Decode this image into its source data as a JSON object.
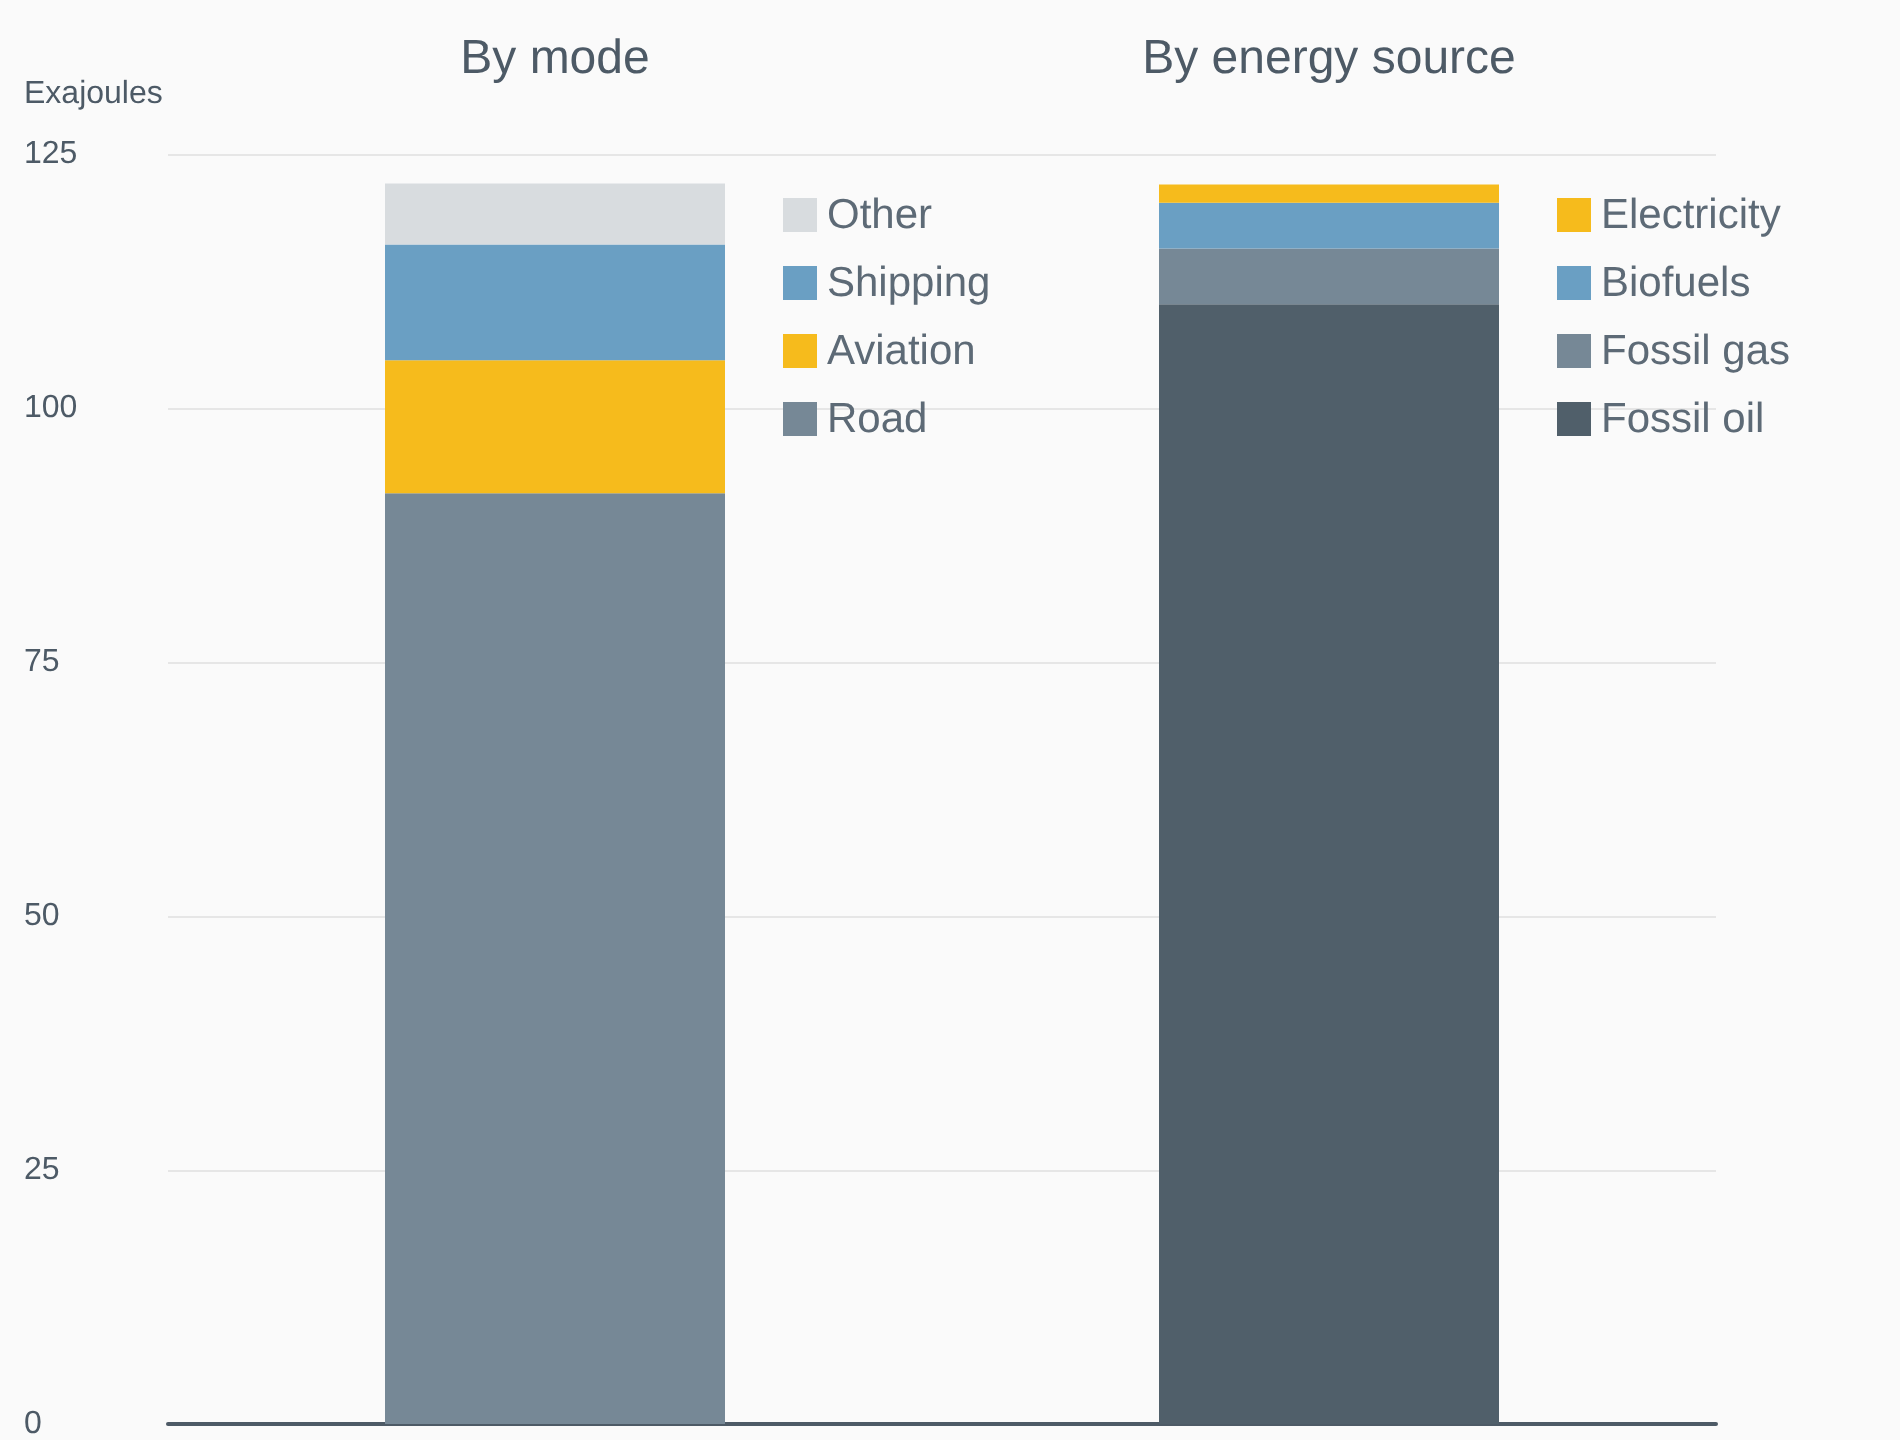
{
  "chart_data": {
    "type": "bar",
    "ylabel": "Exajoules",
    "categories": [
      "By mode",
      "By energy source"
    ],
    "stacked": true,
    "ylim": [
      0,
      125
    ],
    "yticks": [
      0,
      25,
      50,
      75,
      100,
      125
    ],
    "grid": "y",
    "legend": "right",
    "series": [
      {
        "name": "Road",
        "color": "#768896",
        "values": [
          91.6,
          null
        ]
      },
      {
        "name": "Aviation",
        "color": "#f6bb1c",
        "values": [
          13.1,
          null
        ]
      },
      {
        "name": "Shipping",
        "color": "#6a9fc3",
        "values": [
          11.4,
          null
        ]
      },
      {
        "name": "Other",
        "color": "#d8dcdf",
        "values": [
          6.0,
          null
        ]
      },
      {
        "name": "Fossil oil",
        "color": "#505f6a",
        "values": [
          null,
          110.2
        ]
      },
      {
        "name": "Fossil gas",
        "color": "#768896",
        "values": [
          null,
          5.5
        ]
      },
      {
        "name": "Biofuels",
        "color": "#6a9fc3",
        "values": [
          null,
          4.5
        ]
      },
      {
        "name": "Electricity",
        "color": "#f6bb1c",
        "values": [
          null,
          1.8
        ]
      }
    ]
  }
}
